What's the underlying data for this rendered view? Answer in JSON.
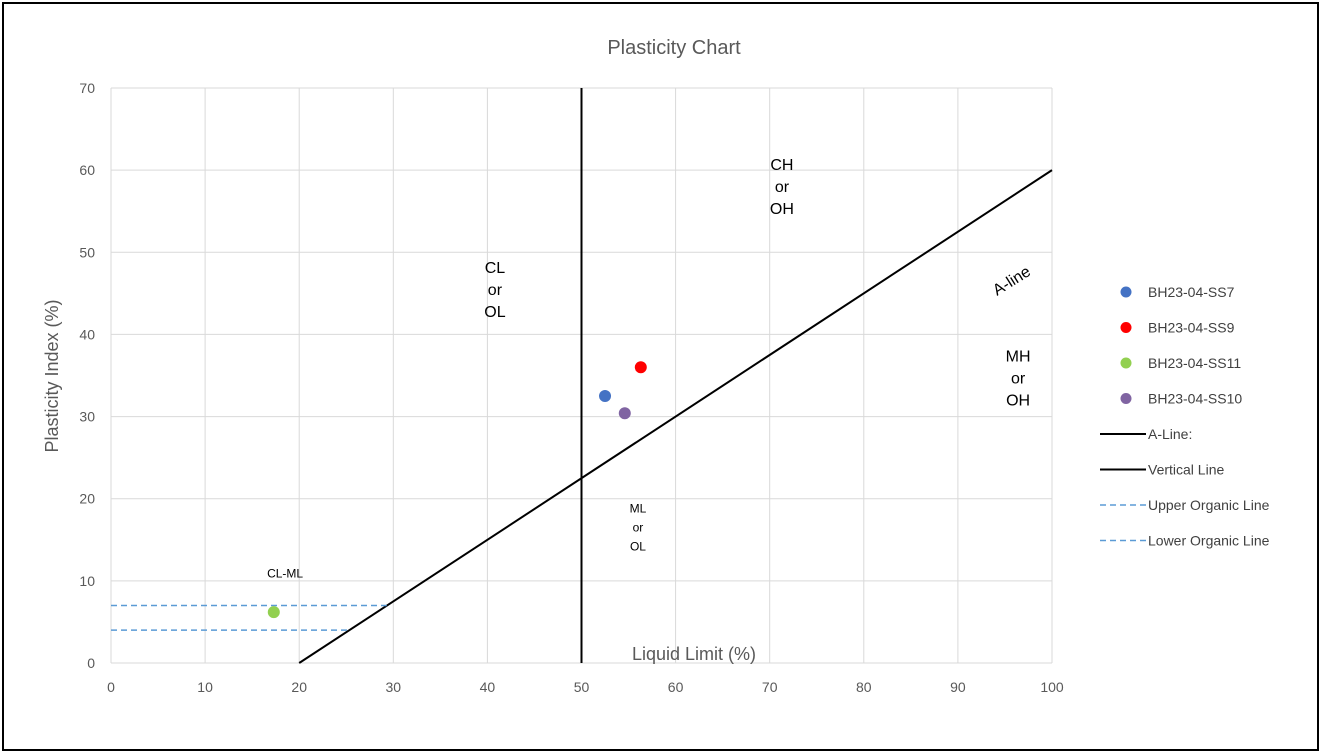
{
  "chart_data": {
    "type": "scatter",
    "title": "Plasticity Chart",
    "xlabel": "Liquid Limit (%)",
    "ylabel": "Plasticity Index (%)",
    "xlim": [
      0,
      100
    ],
    "ylim": [
      0,
      70
    ],
    "xticks": [
      0,
      10,
      20,
      30,
      40,
      50,
      60,
      70,
      80,
      90,
      100
    ],
    "yticks": [
      0,
      10,
      20,
      30,
      40,
      50,
      60,
      70
    ],
    "grid": true,
    "legend_position": "right",
    "series": [
      {
        "name": "BH23-04-SS7",
        "kind": "point",
        "color": "#4472C4",
        "points": [
          [
            52.5,
            32.5
          ]
        ]
      },
      {
        "name": "BH23-04-SS9",
        "kind": "point",
        "color": "#FF0000",
        "points": [
          [
            56.3,
            36.0
          ]
        ]
      },
      {
        "name": "BH23-04-SS11",
        "kind": "point",
        "color": "#92D050",
        "points": [
          [
            17.3,
            6.2
          ]
        ]
      },
      {
        "name": "BH23-04-SS10",
        "kind": "point",
        "color": "#8064A2",
        "points": [
          [
            54.6,
            30.4
          ]
        ]
      },
      {
        "name": "A-Line:",
        "kind": "line",
        "color": "#000000",
        "dashed": false,
        "points": [
          [
            20,
            0
          ],
          [
            100,
            60
          ]
        ]
      },
      {
        "name": "Vertical Line",
        "kind": "line",
        "color": "#000000",
        "dashed": false,
        "points": [
          [
            50,
            0
          ],
          [
            50,
            70
          ]
        ]
      },
      {
        "name": "Upper Organic Line",
        "kind": "line",
        "color": "#5B9BD5",
        "dashed": true,
        "points": [
          [
            0,
            7
          ],
          [
            29.3,
            7
          ]
        ]
      },
      {
        "name": "Lower Organic Line",
        "kind": "line",
        "color": "#5B9BD5",
        "dashed": true,
        "points": [
          [
            0,
            4
          ],
          [
            25.3,
            4
          ]
        ]
      }
    ],
    "annotations": [
      {
        "lines": [
          "CL",
          "or",
          "OL"
        ],
        "x": 40.8,
        "y": 47.5,
        "size": "large"
      },
      {
        "lines": [
          "CH",
          "or",
          "OH"
        ],
        "x": 71.3,
        "y": 60.0,
        "size": "large"
      },
      {
        "lines": [
          "MH",
          "or",
          "OH"
        ],
        "x": 96.4,
        "y": 36.7,
        "size": "large"
      },
      {
        "lines": [
          "ML",
          "or",
          "OL"
        ],
        "x": 56.0,
        "y": 18.3,
        "size": "small"
      },
      {
        "lines": [
          "CL-ML"
        ],
        "x": 18.5,
        "y": 10.4,
        "size": "small"
      },
      {
        "lines": [
          "A-line"
        ],
        "x": 96.0,
        "y": 46.0,
        "size": "large",
        "rotate": -32
      }
    ]
  }
}
